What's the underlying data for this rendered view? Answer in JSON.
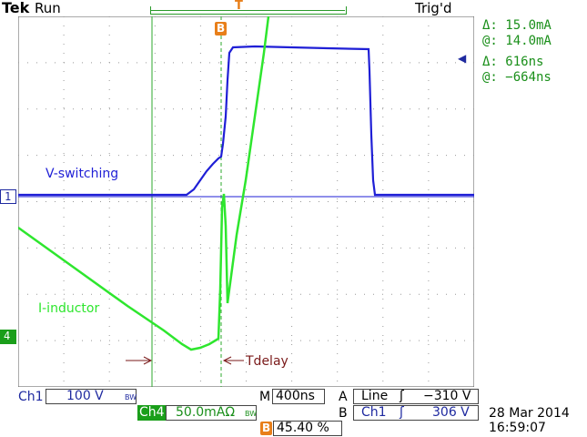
{
  "header": {
    "brand": "Tek",
    "run_state": "Run",
    "trigger_state": "Trig'd",
    "trigger_marker": "T"
  },
  "cursor_readout": {
    "amp_delta": "Δ:  15.0mA",
    "amp_at": "@:  14.0mA",
    "time_delta": "Δ:   616ns",
    "time_at": "@:  −664ns"
  },
  "markers": {
    "ch1": "1",
    "ch4": "4",
    "b": "B"
  },
  "annotations": {
    "v_switching": "V-switching",
    "i_inductor": "I-inductor",
    "tdelay": "Tdelay"
  },
  "bottom": {
    "ch1_label": "Ch1",
    "ch1_scale": "100 V",
    "ch1_bw": "BW",
    "ch4_label": "Ch4",
    "ch4_scale": "50.0mAΩ",
    "ch4_bw": "BW",
    "m_label": "M",
    "timebase": "400ns",
    "a_label": "A",
    "a_source": "Line",
    "a_level": "−310 V",
    "b_label": "B",
    "b_source": "Ch1",
    "b_level": "306 V",
    "b_marker": "B",
    "b_percent": "45.40 %",
    "date": "28 Mar 2014",
    "time": "16:59:07"
  },
  "colors": {
    "ch1": "#1f1fd6",
    "ch4": "#2ee62e",
    "readout": "#1a8f1a",
    "annotation": "#7a1a1a",
    "marker": "#e87f1a",
    "chlabel": "#1f2aa0"
  }
}
